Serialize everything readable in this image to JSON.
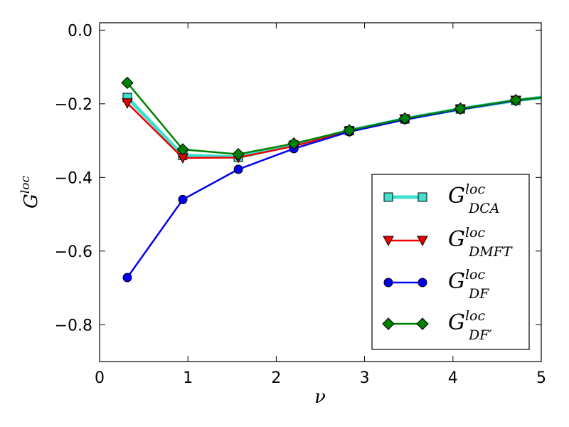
{
  "chart_data": {
    "type": "line",
    "title": "",
    "xlabel": "ν",
    "ylabel": {
      "base": "G",
      "sup": "loc"
    },
    "xlim": [
      0,
      5
    ],
    "ylim": [
      -0.9,
      0.02
    ],
    "xticks": [
      0,
      1,
      2,
      3,
      4,
      5
    ],
    "yticks": [
      0.0,
      -0.2,
      -0.4,
      -0.6,
      -0.8
    ],
    "xtick_labels": [
      "0",
      "1",
      "2",
      "3",
      "4",
      "5"
    ],
    "ytick_labels": [
      "0.0",
      "−0.2",
      "−0.4",
      "−0.6",
      "−0.8"
    ],
    "grid": false,
    "legend_position": "lower-right",
    "x": [
      0.314,
      0.942,
      1.571,
      2.199,
      2.827,
      3.456,
      4.084,
      4.712,
      5.0
    ],
    "series": [
      {
        "name": "DCA",
        "label_base": "G",
        "label_sup": "loc",
        "label_sub": "DCA",
        "color": "#40e0d0",
        "edge": "#000000",
        "marker": "square",
        "linewidth": 5,
        "values": [
          -0.183,
          -0.34,
          -0.345,
          -0.312,
          -0.273,
          -0.241,
          -0.214,
          -0.191,
          -0.183
        ]
      },
      {
        "name": "DMFT",
        "label_base": "G",
        "label_sup": "loc",
        "label_sub": "DMFT",
        "color": "#ee0000",
        "edge": "#000000",
        "marker": "triangle-down",
        "linewidth": 2.5,
        "values": [
          -0.198,
          -0.347,
          -0.346,
          -0.315,
          -0.275,
          -0.242,
          -0.215,
          -0.191,
          -0.183
        ]
      },
      {
        "name": "DF",
        "label_base": "G",
        "label_sup": "loc",
        "label_sub": "DF",
        "color": "#0000ee",
        "edge": "#000000",
        "marker": "circle",
        "linewidth": 2.5,
        "values": [
          -0.672,
          -0.46,
          -0.378,
          -0.322,
          -0.276,
          -0.243,
          -0.215,
          -0.191,
          -0.183
        ]
      },
      {
        "name": "DF'",
        "label_base": "G",
        "label_sup": "loc",
        "label_sub": "DF′",
        "color": "#008000",
        "edge": "#000000",
        "marker": "diamond",
        "linewidth": 2.5,
        "values": [
          -0.143,
          -0.324,
          -0.337,
          -0.308,
          -0.272,
          -0.24,
          -0.213,
          -0.19,
          -0.183
        ]
      }
    ]
  }
}
